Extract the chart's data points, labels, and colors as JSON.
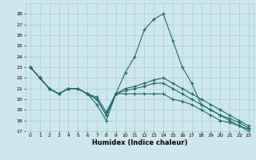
{
  "xlabel": "Humidex (Indice chaleur)",
  "xlim": [
    -0.5,
    23.5
  ],
  "ylim": [
    17,
    29
  ],
  "yticks": [
    17,
    18,
    19,
    20,
    21,
    22,
    23,
    24,
    25,
    26,
    27,
    28
  ],
  "xticks": [
    0,
    1,
    2,
    3,
    4,
    5,
    6,
    7,
    8,
    9,
    10,
    11,
    12,
    13,
    14,
    15,
    16,
    17,
    18,
    19,
    20,
    21,
    22,
    23
  ],
  "bg_color": "#cde8ec",
  "grid_color": "#aacdd2",
  "line_color": "#1a6b6b",
  "series": [
    {
      "x": [
        0,
        1,
        2,
        3,
        4,
        5,
        6,
        7,
        8,
        9,
        10,
        11,
        12,
        13,
        14,
        15,
        16,
        17,
        18,
        19,
        20,
        21,
        22,
        23
      ],
      "y": [
        23.0,
        22.0,
        21.0,
        20.5,
        21.0,
        21.0,
        20.5,
        19.5,
        18.0,
        20.5,
        22.5,
        24.0,
        26.5,
        27.5,
        28.0,
        25.5,
        23.0,
        21.5,
        19.5,
        19.0,
        18.5,
        18.0,
        17.5,
        17.0
      ]
    },
    {
      "x": [
        0,
        1,
        2,
        3,
        4,
        5,
        6,
        7,
        8,
        9,
        10,
        11,
        12,
        13,
        14,
        15,
        16,
        17,
        18,
        19,
        20,
        21,
        22,
        23
      ],
      "y": [
        23.0,
        22.0,
        21.0,
        20.5,
        21.0,
        21.0,
        20.5,
        20.0,
        18.5,
        20.5,
        20.5,
        20.5,
        20.5,
        20.5,
        20.5,
        20.0,
        19.8,
        19.5,
        19.0,
        18.5,
        18.0,
        17.8,
        17.5,
        17.2
      ]
    },
    {
      "x": [
        0,
        1,
        2,
        3,
        4,
        5,
        6,
        7,
        8,
        9,
        10,
        11,
        12,
        13,
        14,
        15,
        16,
        17,
        18,
        19,
        20,
        21,
        22,
        23
      ],
      "y": [
        23.0,
        22.0,
        21.0,
        20.5,
        21.0,
        21.0,
        20.5,
        20.0,
        18.5,
        20.5,
        20.8,
        21.0,
        21.2,
        21.5,
        21.5,
        21.0,
        20.5,
        20.0,
        19.5,
        19.0,
        18.5,
        18.2,
        17.8,
        17.3
      ]
    },
    {
      "x": [
        0,
        1,
        2,
        3,
        4,
        5,
        6,
        7,
        8,
        9,
        10,
        11,
        12,
        13,
        14,
        15,
        16,
        17,
        18,
        19,
        20,
        21,
        22,
        23
      ],
      "y": [
        23.0,
        22.0,
        21.0,
        20.5,
        21.0,
        21.0,
        20.5,
        20.2,
        18.8,
        20.5,
        21.0,
        21.2,
        21.5,
        21.8,
        22.0,
        21.5,
        21.0,
        20.5,
        20.0,
        19.5,
        19.0,
        18.5,
        18.0,
        17.5
      ]
    }
  ]
}
